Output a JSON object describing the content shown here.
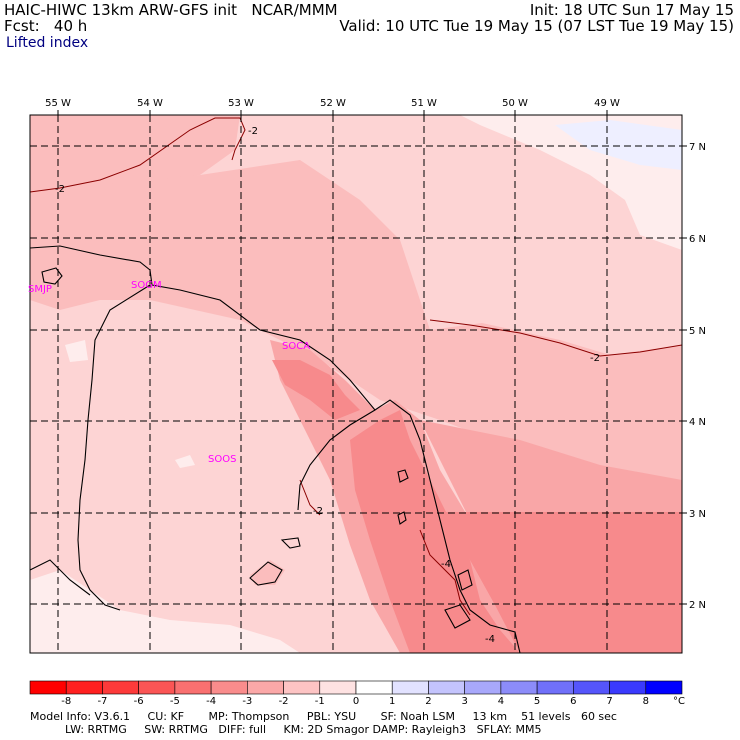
{
  "header": {
    "title_left": "HAIC-HIWC 13km ARW-GFS init   NCAR/MMM",
    "forecast": "Fcst:   40 h",
    "field": "Lifted index",
    "init": "Init: 18 UTC Sun 17 May 15",
    "valid": "Valid: 10 UTC Tue 19 May 15 (07 LST Tue 19 May 15)"
  },
  "map": {
    "lon_labels": [
      "55 W",
      "54 W",
      "53 W",
      "52 W",
      "51 W",
      "50 W",
      "49 W"
    ],
    "lat_labels": [
      "7 N",
      "6 N",
      "5 N",
      "4 N",
      "3 N",
      "2 N"
    ],
    "stations": [
      "SMJP",
      "SOGM",
      "SOCA",
      "SOOS"
    ],
    "contour_labels": [
      "-2",
      "-2",
      "-2",
      "-2",
      "-4",
      "-4"
    ],
    "colors": {
      "coast_border": "#000000",
      "grid": "#000000",
      "station": "#ff00ff",
      "fill_levels": {
        "-4_to_-5": "#f78a8c",
        "-3_to_-4": "#f9a6a7",
        "-2_to_-3": "#fbbdbd",
        "-1_to_-2": "#fdd4d4",
        "0_to_-1": "#feeded",
        "0_to_1": "#eeefff"
      }
    }
  },
  "colorbar": {
    "labels": [
      "-8",
      "-7",
      "-6",
      "-5",
      "-4",
      "-3",
      "-2",
      "-1",
      "0",
      "1",
      "2",
      "3",
      "4",
      "5",
      "6",
      "7",
      "8"
    ],
    "unit": "°C",
    "colors": [
      "#ff0000",
      "#ff2020",
      "#fd3a3a",
      "#fb5555",
      "#f97070",
      "#f98c8c",
      "#fba8a8",
      "#fdc4c4",
      "#fee2e2",
      "#ffffff",
      "#e2e2ff",
      "#c4c4fd",
      "#a8a8fb",
      "#8c8cf9",
      "#7070f9",
      "#5555fb",
      "#3a3afd",
      "#0000ff"
    ]
  },
  "footer": {
    "line1": "Model Info: V3.6.1     CU: KF       MP: Thompson     PBL: YSU       SF: Noah LSM     13 km    51 levels   60 sec",
    "line2": "          LW: RRTMG     SW: RRTMG   DIFF: full     KM: 2D Smagor DAMP: Rayleigh3   SFLAY: MM5"
  }
}
